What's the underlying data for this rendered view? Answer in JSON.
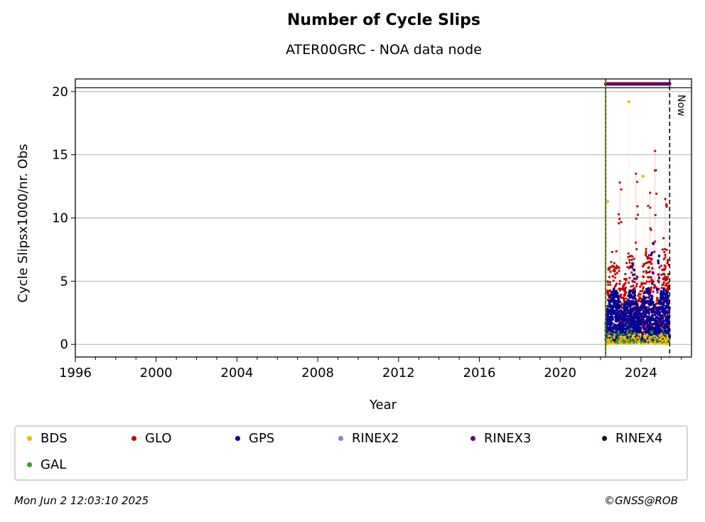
{
  "chart_data": {
    "type": "scatter",
    "title": "Number of Cycle Slips",
    "subtitle": "ATER00GRC - NOA data node",
    "xlabel": "Year",
    "ylabel": "Cycle Slipsx1000/nr. Obs",
    "xlim": [
      1996,
      2026.5
    ],
    "ylim": [
      -1,
      21
    ],
    "xticks": [
      "1996",
      "2000",
      "2004",
      "2008",
      "2012",
      "2016",
      "2020",
      "2024"
    ],
    "yticks": [
      "0",
      "5",
      "10",
      "15",
      "20"
    ],
    "grid": "horizontal",
    "start_marker_year": 2022.25,
    "now_marker_year": 2025.42,
    "now_label": "Now",
    "top_line_y": 20.3,
    "rinex3_band": {
      "from": 2022.25,
      "to": 2025.42,
      "y": 20.6
    },
    "series": [
      {
        "name": "BDS",
        "color": "#f5b800",
        "typical_range": [
          0,
          0.8
        ],
        "outliers": [
          [
            2022.35,
            11.3
          ],
          [
            2023.4,
            19.2
          ],
          [
            2024.1,
            13.3
          ]
        ]
      },
      {
        "name": "GLO",
        "color": "#c00000",
        "typical_range": [
          0.2,
          6.0
        ],
        "peaks": [
          [
            2022.95,
            12.8
          ],
          [
            2023.75,
            13.5
          ],
          [
            2024.45,
            12.0
          ],
          [
            2024.7,
            15.3
          ],
          [
            2025.2,
            11.5
          ]
        ]
      },
      {
        "name": "GPS",
        "color": "#000099",
        "typical_range": [
          0.3,
          3.5
        ],
        "peaks": [
          [
            2023.6,
            6.4
          ],
          [
            2024.6,
            8.0
          ],
          [
            2024.9,
            7.0
          ]
        ]
      },
      {
        "name": "RINEX2",
        "color": "#8a7fc6"
      },
      {
        "name": "RINEX3",
        "color": "#6b006b"
      },
      {
        "name": "RINEX4",
        "color": "#1a0022"
      },
      {
        "name": "GAL",
        "color": "#2ca02c",
        "typical_range": [
          0.1,
          1.0
        ]
      }
    ]
  },
  "legend": [
    {
      "label": "BDS",
      "color": "#f5b800"
    },
    {
      "label": "GLO",
      "color": "#c00000"
    },
    {
      "label": "GPS",
      "color": "#000099"
    },
    {
      "label": "RINEX2",
      "color": "#8a7fc6"
    },
    {
      "label": "RINEX3",
      "color": "#6b006b"
    },
    {
      "label": "RINEX4",
      "color": "#1a0022"
    },
    {
      "label": "GAL",
      "color": "#2ca02c"
    }
  ],
  "footer": {
    "timestamp": "Mon Jun  2 12:03:10 2025",
    "credit": "©GNSS@ROB"
  }
}
